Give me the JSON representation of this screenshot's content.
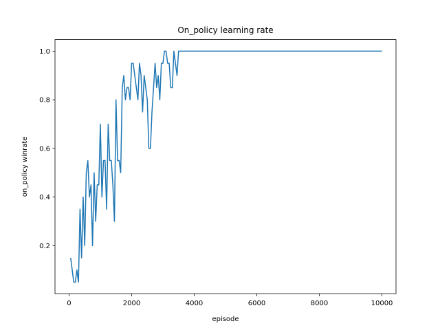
{
  "chart_data": {
    "type": "line",
    "title": "On_policy learning rate",
    "xlabel": "episode",
    "ylabel": "on_policy winrate",
    "xlim": [
      -450,
      10450
    ],
    "ylim": [
      0.0025,
      1.0475
    ],
    "xticks": [
      0,
      2000,
      4000,
      6000,
      8000,
      10000
    ],
    "yticks": [
      0.2,
      0.4,
      0.6,
      0.8,
      1.0
    ],
    "ytick_labels": [
      "0.2",
      "0.4",
      "0.6",
      "0.8",
      "1.0"
    ],
    "grid": false,
    "legend": "none",
    "line_color": "#1f77b4",
    "series": [
      {
        "x": [
          50,
          100,
          150,
          200,
          250,
          300,
          350,
          400,
          450,
          500,
          550,
          600,
          650,
          700,
          750,
          800,
          850,
          900,
          950,
          1000,
          1050,
          1100,
          1150,
          1200,
          1250,
          1300,
          1350,
          1400,
          1450,
          1500,
          1550,
          1600,
          1650,
          1700,
          1750,
          1800,
          1850,
          1900,
          1950,
          2000,
          2050,
          2100,
          2150,
          2200,
          2250,
          2300,
          2350,
          2400,
          2450,
          2500,
          2550,
          2600,
          2650,
          2700,
          2750,
          2800,
          2850,
          2900,
          2950,
          3000,
          3050,
          3100,
          3150,
          3200,
          3250,
          3300,
          3350,
          3400,
          3450,
          3500,
          3550,
          3600,
          3650,
          3700,
          3750,
          3800,
          3850,
          3900,
          3950,
          4000,
          5000,
          6000,
          7000,
          8000,
          9000,
          10000
        ],
        "y": [
          0.15,
          0.1,
          0.05,
          0.05,
          0.1,
          0.05,
          0.35,
          0.15,
          0.4,
          0.2,
          0.5,
          0.55,
          0.4,
          0.45,
          0.2,
          0.5,
          0.3,
          0.45,
          0.45,
          0.7,
          0.4,
          0.55,
          0.55,
          0.35,
          0.7,
          0.55,
          0.55,
          0.45,
          0.3,
          0.8,
          0.55,
          0.55,
          0.5,
          0.85,
          0.9,
          0.8,
          0.85,
          0.85,
          0.8,
          0.95,
          0.95,
          0.9,
          0.85,
          0.8,
          0.95,
          0.9,
          0.75,
          0.9,
          0.85,
          0.8,
          0.6,
          0.6,
          0.75,
          0.85,
          0.95,
          0.85,
          0.9,
          0.8,
          0.95,
          0.95,
          1.0,
          1.0,
          0.95,
          0.95,
          0.85,
          0.85,
          1.0,
          0.95,
          0.9,
          1.0,
          1.0,
          1.0,
          1.0,
          1.0,
          1.0,
          1.0,
          1.0,
          1.0,
          1.0,
          1.0,
          1.0,
          1.0,
          1.0,
          1.0,
          1.0,
          1.0
        ]
      }
    ]
  }
}
